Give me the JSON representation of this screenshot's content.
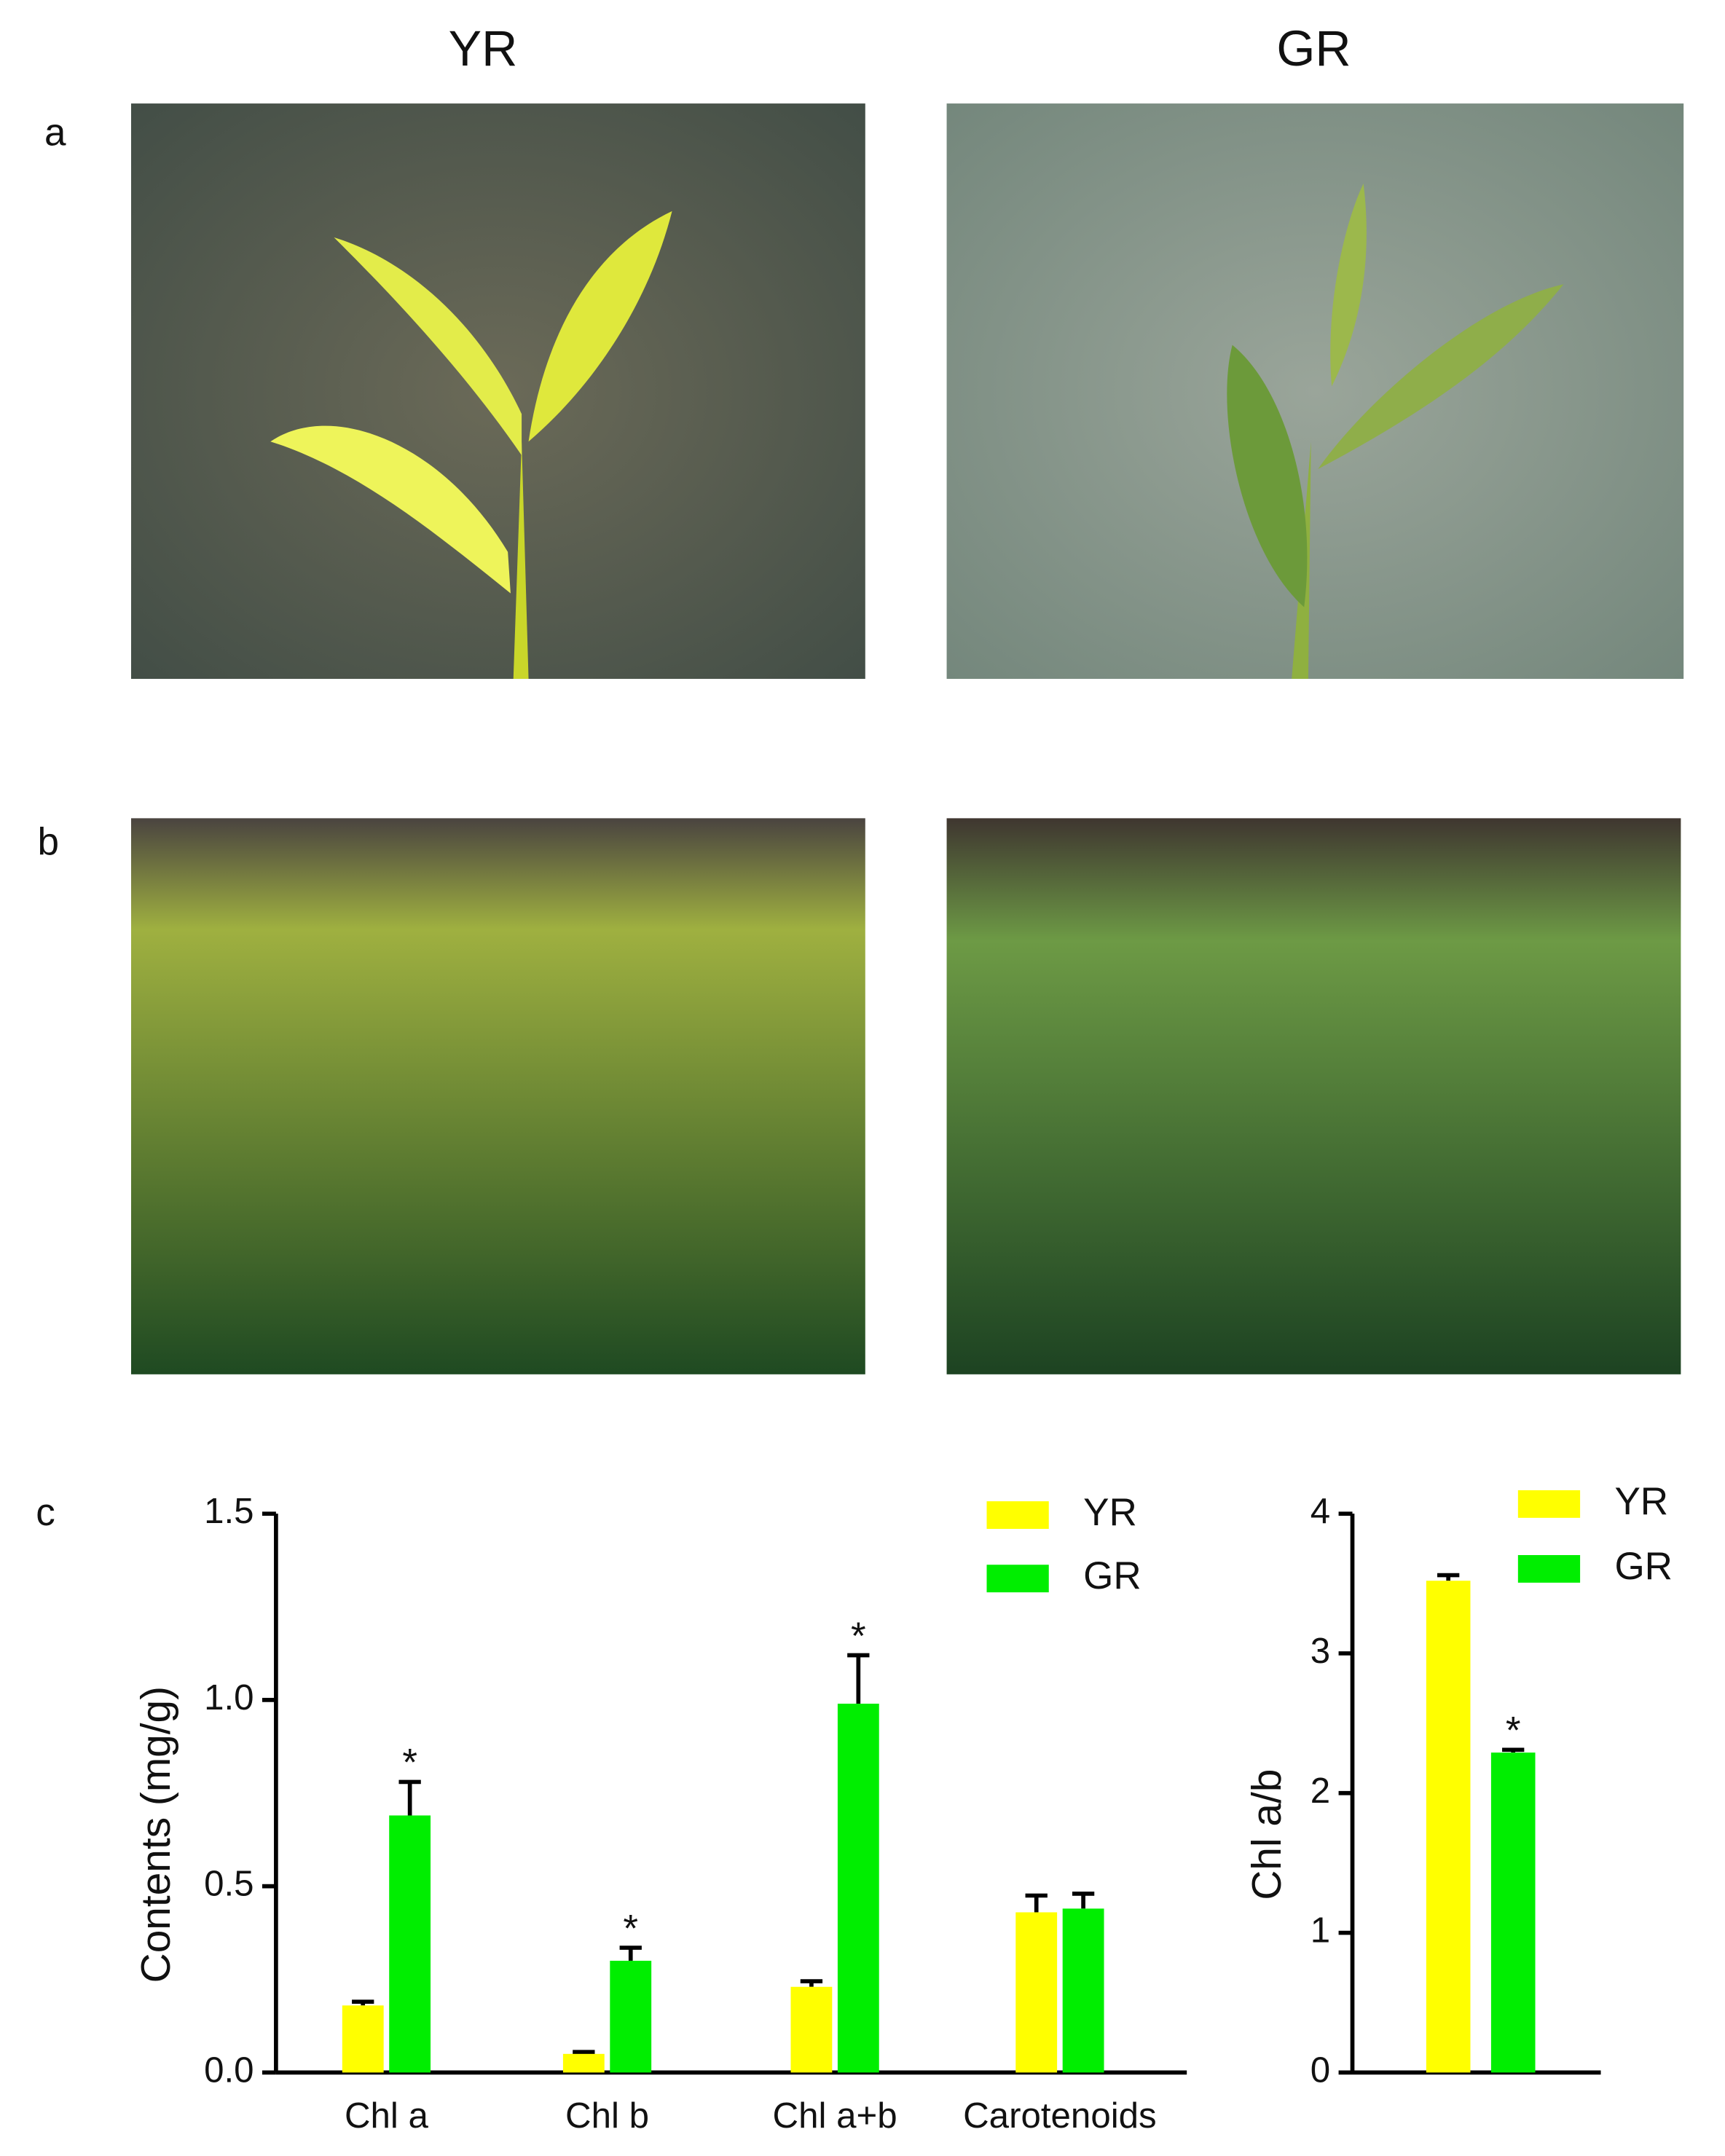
{
  "headers": [
    "YR",
    "GR"
  ],
  "panel_labels": [
    "a",
    "b",
    "c"
  ],
  "chart_data": [
    {
      "type": "bar",
      "y_label": "Contents (mg/g)",
      "categories": [
        "Chl a",
        "Chl b",
        "Chl a+b",
        "Carotenoids"
      ],
      "series": [
        {
          "name": "YR",
          "color": "#ffff00",
          "values": [
            0.18,
            0.05,
            0.23,
            0.43
          ],
          "errors": [
            0.01,
            0.005,
            0.015,
            0.045
          ],
          "annotations": [
            null,
            null,
            null,
            null
          ]
        },
        {
          "name": "GR",
          "color": "#00ee00",
          "values": [
            0.69,
            0.3,
            0.99,
            0.44
          ],
          "errors": [
            0.09,
            0.035,
            0.13,
            0.04
          ],
          "annotations": [
            "*",
            "*",
            "*",
            null
          ]
        }
      ],
      "ylim": [
        0,
        1.5
      ],
      "yticks": [
        {
          "value": 0,
          "label": "0.0"
        },
        0.5,
        {
          "value": 1,
          "label": "1.0"
        },
        1.5
      ]
    },
    {
      "type": "bar",
      "y_label": "Chl a/b",
      "categories": [
        null
      ],
      "series": [
        {
          "name": "YR",
          "color": "#ffff00",
          "values": [
            3.52
          ],
          "errors": [
            0.04
          ],
          "annotations": [
            null
          ]
        },
        {
          "name": "GR",
          "color": "#00ee00",
          "values": [
            2.29
          ],
          "errors": [
            0.02
          ],
          "annotations": [
            "*"
          ]
        }
      ],
      "ylim": [
        0,
        4
      ],
      "yticks": [
        0,
        1,
        2,
        3,
        4
      ]
    }
  ]
}
